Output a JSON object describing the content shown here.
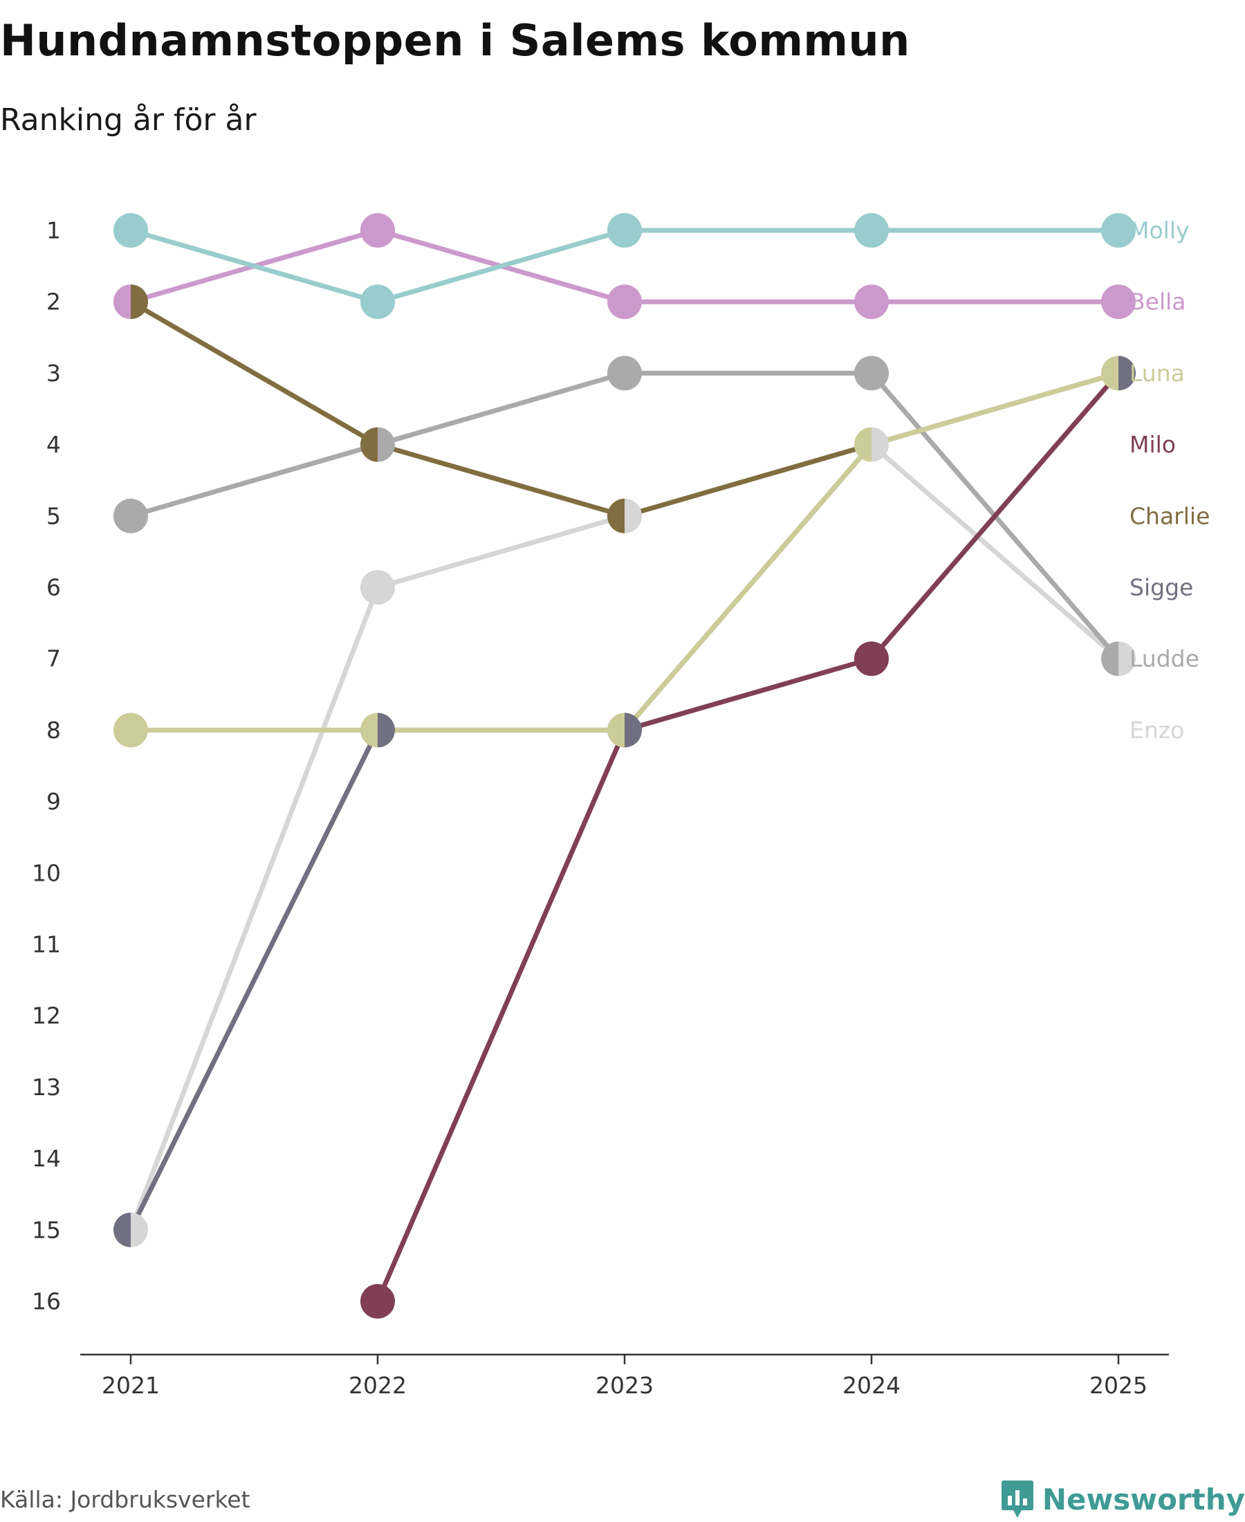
{
  "header": {
    "title": "Hundnamnstoppen i Salems kommun",
    "subtitle": "Ranking år för år"
  },
  "footer": {
    "source": "Källa: Jordbruksverket",
    "brand": "Newsworthy",
    "brand_color": "#3f9b94"
  },
  "chart_data": {
    "type": "line",
    "title": "Hundnamnstoppen i Salems kommun",
    "subtitle": "Ranking år för år",
    "xlabel": "",
    "ylabel": "",
    "x": [
      "2021",
      "2022",
      "2023",
      "2024",
      "2025"
    ],
    "y_ticks": [
      1,
      2,
      3,
      4,
      5,
      6,
      7,
      8,
      9,
      10,
      11,
      12,
      13,
      14,
      15,
      16
    ],
    "ylim": [
      1,
      16
    ],
    "y_inverted": true,
    "grid": false,
    "legend": "right",
    "series": [
      {
        "name": "Molly",
        "color": "#99cccc",
        "values": [
          1,
          2,
          1,
          1,
          1
        ]
      },
      {
        "name": "Bella",
        "color": "#cc99cc",
        "values": [
          2,
          1,
          2,
          2,
          2
        ]
      },
      {
        "name": "Luna",
        "color": "#cccc99",
        "values": [
          8,
          8,
          8,
          4,
          3
        ]
      },
      {
        "name": "Milo",
        "color": "#803f55",
        "values": [
          null,
          16,
          8,
          7,
          3
        ]
      },
      {
        "name": "Charlie",
        "color": "#806d40",
        "values": [
          2,
          4,
          5,
          4,
          null
        ]
      },
      {
        "name": "Sigge",
        "color": "#707080",
        "values": [
          15,
          8,
          8,
          4,
          3
        ]
      },
      {
        "name": "Ludde",
        "color": "#aaaaaa",
        "values": [
          5,
          4,
          3,
          3,
          7
        ]
      },
      {
        "name": "Enzo",
        "color": "#d6d6d6",
        "values": [
          15,
          6,
          5,
          4,
          7
        ]
      }
    ],
    "label_order": [
      "Molly",
      "Bella",
      "Luna",
      "Milo",
      "Charlie",
      "Sigge",
      "Ludde",
      "Enzo"
    ]
  }
}
